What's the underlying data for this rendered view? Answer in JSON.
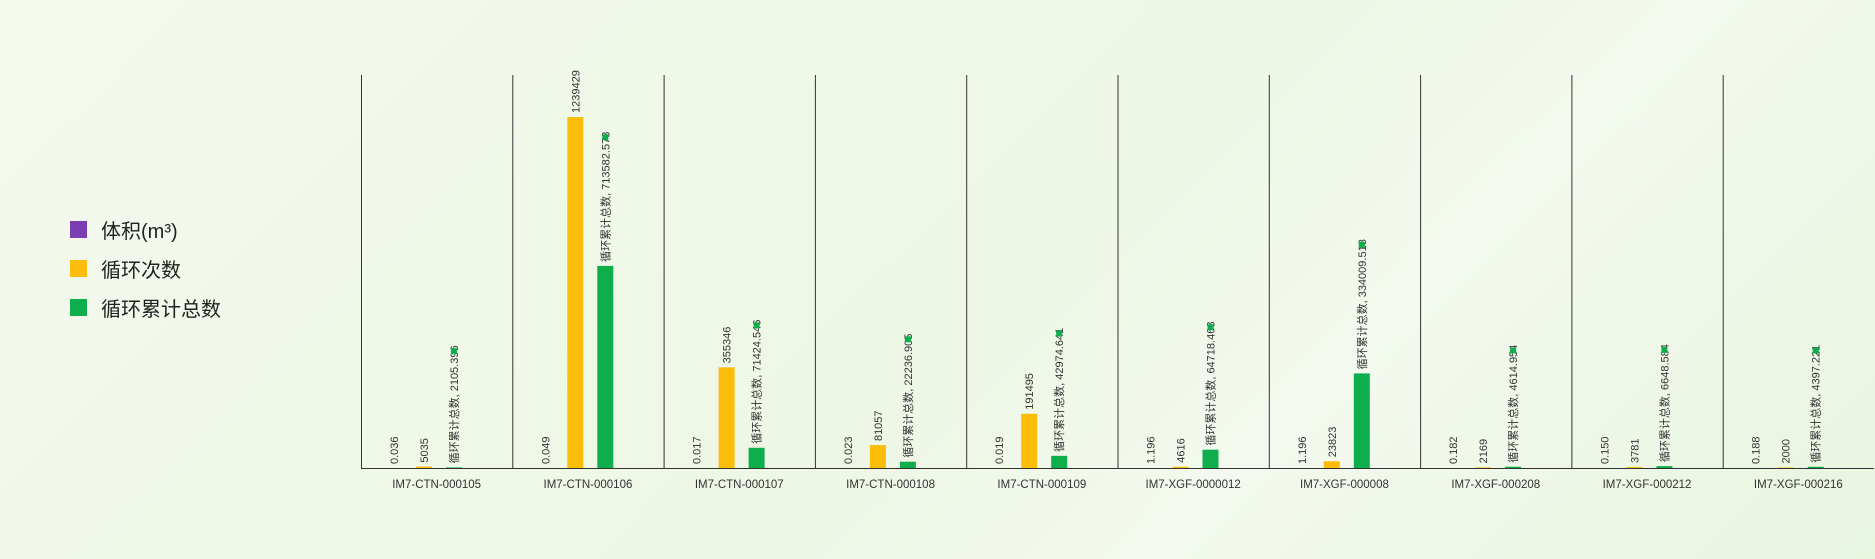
{
  "legend": [
    {
      "label": "体积(m³)",
      "color": "#7a3eb0"
    },
    {
      "label": "循环次数",
      "color": "#fbbc0a"
    },
    {
      "label": "循环累计总数",
      "color": "#0fae4c"
    }
  ],
  "chart_data": {
    "type": "bar",
    "categories": [
      "IM7-CTN-000105",
      "IM7-CTN-000106",
      "IM7-CTN-000107",
      "IM7-CTN-000108",
      "IM7-CTN-000109",
      "IM7-XGF-0000012",
      "IM7-XGF-000008",
      "IM7-XGF-000208",
      "IM7-XGF-000212",
      "IM7-XGF-000216"
    ],
    "series": [
      {
        "name": "体积(m³)",
        "color": "#7a3eb0",
        "values": [
          0.036,
          0.049,
          0.017,
          0.023,
          0.019,
          1.196,
          1.196,
          0.182,
          0.15,
          0.188
        ],
        "labels": [
          "0.036",
          "0.049",
          "0.017",
          "0.023",
          "0.019",
          "1.196",
          "1.196",
          "0.182",
          "0.150",
          "0.188"
        ]
      },
      {
        "name": "循环次数",
        "color": "#fbbc0a",
        "values": [
          5035,
          1239429,
          355346,
          81057,
          191495,
          4616,
          23823,
          2169,
          3781,
          2000
        ],
        "labels": [
          "5035",
          "1239429",
          "355346",
          "81057",
          "191495",
          "4616",
          "23823",
          "2169",
          "3781",
          "2000"
        ]
      },
      {
        "name": "循环累计总数",
        "color": "#0fae4c",
        "values": [
          2105.396,
          713582.573,
          71424.546,
          22236.905,
          42974.641,
          64718.463,
          334009.518,
          4614.954,
          6648.584,
          4397.221
        ],
        "labels": [
          "循环累计总数, 2105.396",
          "循环累计总数, 713582.573",
          "循环累计总数, 71424.546",
          "循环累计总数, 22236.905",
          "循环累计总数, 42974.641",
          "循环累计总数, 64718.463",
          "循环累计总数, 334009.518",
          "循环累计总数, 4614.954",
          "循环累计总数, 6648.584",
          "循环累计总数, 4397.221"
        ]
      }
    ],
    "ylim": [
      0,
      1239429
    ],
    "grid": false,
    "legend_position": "left"
  }
}
